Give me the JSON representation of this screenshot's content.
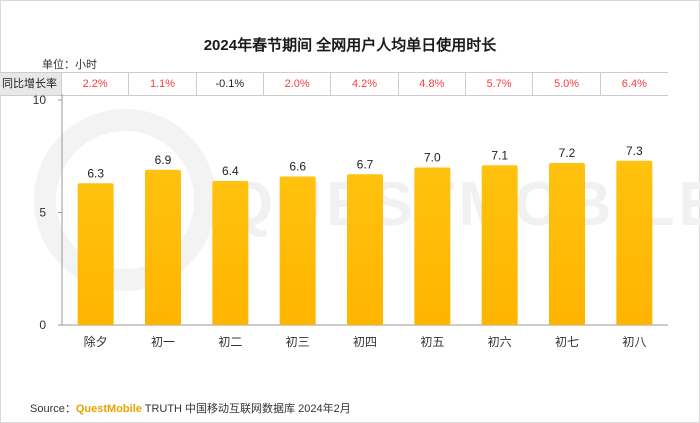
{
  "chart_data": {
    "type": "bar",
    "title": "2024年春节期间 全网用户人均单日使用时长",
    "unit_label": "单位：小时",
    "categories": [
      "除夕",
      "初一",
      "初二",
      "初三",
      "初四",
      "初五",
      "初六",
      "初七",
      "初八"
    ],
    "values": [
      6.3,
      6.9,
      6.4,
      6.6,
      6.7,
      7.0,
      7.1,
      7.2,
      7.3
    ],
    "value_labels": [
      "6.3",
      "6.9",
      "6.4",
      "6.6",
      "6.7",
      "7.0",
      "7.1",
      "7.2",
      "7.3"
    ],
    "ylim": [
      0,
      10
    ],
    "yticks": [
      "0",
      "5",
      "10"
    ],
    "grid": false,
    "bar_color": "#ffc000",
    "growth_row": {
      "label": "同比增长率",
      "values": [
        "2.2%",
        "1.1%",
        "-0.1%",
        "2.0%",
        "4.2%",
        "4.8%",
        "5.7%",
        "5.0%",
        "6.4%"
      ],
      "colors": [
        "#ff3b3b",
        "#ff3b3b",
        "#222222",
        "#ff3b3b",
        "#ff3b3b",
        "#ff3b3b",
        "#ff3b3b",
        "#ff3b3b",
        "#ff3b3b"
      ]
    },
    "watermark": "QUESTMOBILE"
  },
  "source": {
    "prefix": "Source：",
    "brand": "QuestMobile",
    "rest": " TRUTH 中国移动互联网数据库 2024年2月"
  }
}
